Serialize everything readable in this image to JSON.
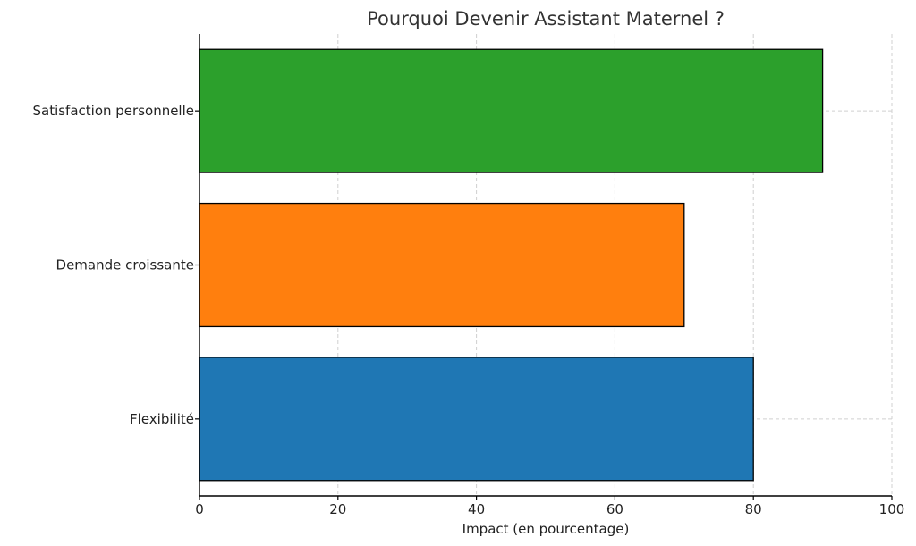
{
  "chart_data": {
    "type": "bar",
    "orientation": "horizontal",
    "title": "Pourquoi Devenir Assistant Maternel ?",
    "xlabel": "Impact (en pourcentage)",
    "ylabel": "",
    "categories": [
      "Flexibilité",
      "Demande croissante",
      "Satisfaction personnelle"
    ],
    "values": [
      80,
      70,
      90
    ],
    "colors": [
      "#1f77b4",
      "#ff7f0e",
      "#2ca02c"
    ],
    "xlim": [
      0,
      100
    ],
    "xticks": [
      0,
      20,
      40,
      60,
      80,
      100
    ],
    "grid": true,
    "legend": "none"
  }
}
